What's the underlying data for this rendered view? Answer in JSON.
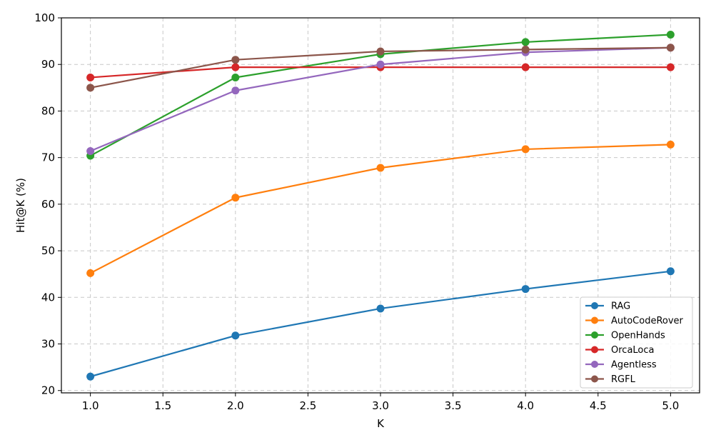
{
  "chart_data": {
    "type": "line",
    "xlabel": "K",
    "ylabel": "Hit@K (%)",
    "xlim": [
      0.8,
      5.2
    ],
    "ylim": [
      19.5,
      100
    ],
    "xticks": [
      1.0,
      1.5,
      2.0,
      2.5,
      3.0,
      3.5,
      4.0,
      4.5,
      5.0
    ],
    "xtick_labels": [
      "1.0",
      "1.5",
      "2.0",
      "2.5",
      "3.0",
      "3.5",
      "4.0",
      "4.5",
      "5.0"
    ],
    "yticks": [
      20,
      30,
      40,
      50,
      60,
      70,
      80,
      90,
      100
    ],
    "ytick_labels": [
      "20",
      "30",
      "40",
      "50",
      "60",
      "70",
      "80",
      "90",
      "100"
    ],
    "grid": true,
    "legend_position": "lower-right",
    "x": [
      1,
      2,
      3,
      4,
      5
    ],
    "series": [
      {
        "name": "RAG",
        "color": "#1f77b4",
        "values": [
          23.0,
          31.8,
          37.6,
          41.8,
          45.6
        ]
      },
      {
        "name": "AutoCodeRover",
        "color": "#ff7f0e",
        "values": [
          45.2,
          61.4,
          67.8,
          71.8,
          72.8
        ]
      },
      {
        "name": "OpenHands",
        "color": "#2ca02c",
        "values": [
          70.4,
          87.2,
          92.2,
          94.8,
          96.4
        ]
      },
      {
        "name": "OrcaLoca",
        "color": "#d62728",
        "values": [
          87.2,
          89.4,
          89.4,
          89.4,
          89.4
        ]
      },
      {
        "name": "Agentless",
        "color": "#9467bd",
        "values": [
          71.4,
          84.4,
          90.0,
          92.6,
          93.6
        ]
      },
      {
        "name": "RGFL",
        "color": "#8c564b",
        "values": [
          85.0,
          91.0,
          92.8,
          93.2,
          93.6
        ]
      }
    ]
  }
}
